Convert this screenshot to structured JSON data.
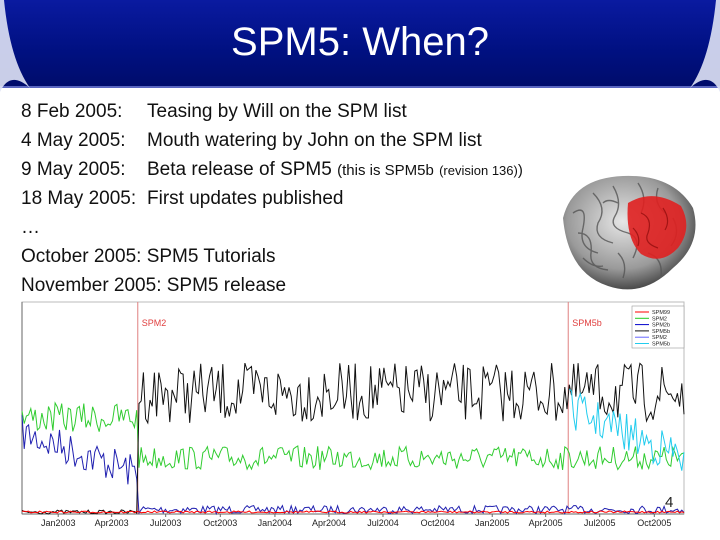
{
  "slide": {
    "title": "SPM5: When?",
    "page_number": "4"
  },
  "timeline": [
    {
      "date": "8 Feb 2005:",
      "text": "Teasing by Will on the SPM list"
    },
    {
      "date": "4 May 2005:",
      "text": "Mouth watering by John on the SPM list"
    },
    {
      "date": "9 May 2005:",
      "text": "Beta release of SPM5",
      "paren_open": "(",
      "note": "this is SPM5b",
      "revision": "(revision 136)",
      "paren_close": ")"
    },
    {
      "date": "18 May 2005:",
      "text": "First updates published"
    },
    {
      "ellipsis": "…"
    },
    {
      "full": "October 2005: SPM5 Tutorials"
    },
    {
      "full": "November 2005: SPM5 release"
    }
  ],
  "chart_data": {
    "type": "line",
    "x": [
      "Jan2003",
      "Apr2003",
      "Jul2003",
      "Oct2003",
      "Jan2004",
      "Apr2004",
      "Jul2004",
      "Oct2004",
      "Jan2005",
      "Apr2005",
      "Jul2005",
      "Oct2005"
    ],
    "annotations": [
      {
        "label": "SPM2",
        "x": "2003-05-15",
        "color": "#e04040"
      },
      {
        "label": "SPM5b",
        "x": "2005-05-09",
        "color": "#e04040"
      }
    ],
    "legend_position": "top-right",
    "series": [
      {
        "name": "SPM99",
        "color": "#ff0000"
      },
      {
        "name": "SPM2",
        "color": "#22cc22"
      },
      {
        "name": "SPM2b",
        "color": "#0000cc"
      },
      {
        "name": "SPM5b",
        "color": "#111111"
      },
      {
        "name": "SPM2",
        "color": "#6666ff"
      },
      {
        "name": "SPM5b",
        "color": "#22ccee"
      }
    ]
  },
  "colors": {
    "title_bar": "#001080",
    "title_text": "#ffffff",
    "brain_activation": "#e02020"
  }
}
